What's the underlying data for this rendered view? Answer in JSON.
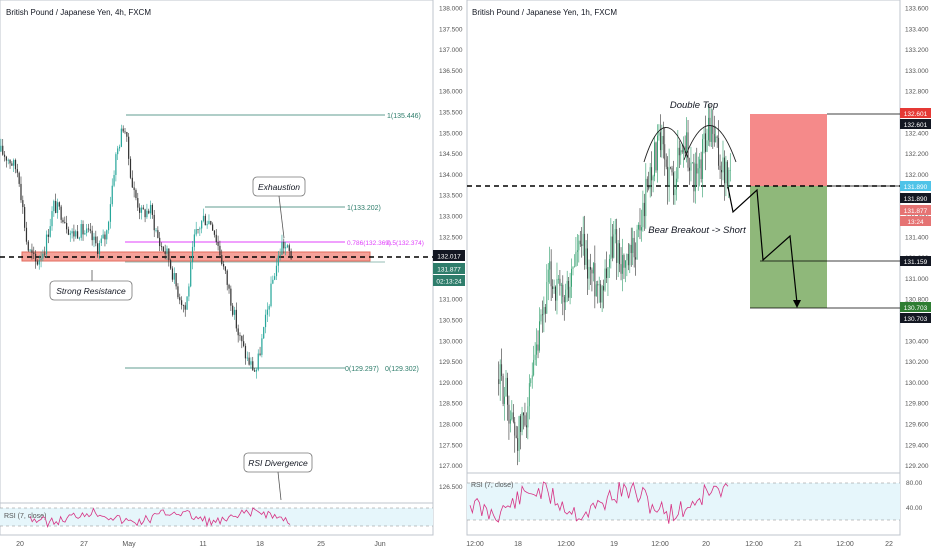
{
  "left_panel": {
    "title": "British Pound / Japanese Yen, 4h, FXCM",
    "price_ticks": [
      "138.000",
      "137.500",
      "137.000",
      "136.500",
      "136.000",
      "135.500",
      "135.000",
      "134.500",
      "134.000",
      "133.500",
      "133.000",
      "132.500",
      "132.000",
      "131.500",
      "131.000",
      "130.500",
      "130.000",
      "129.500",
      "129.000",
      "128.500",
      "128.000",
      "127.500",
      "127.000",
      "126.500"
    ],
    "date_ticks": [
      "20",
      "27",
      "May",
      "11",
      "18",
      "25",
      "Jun"
    ],
    "fib_labels": {
      "high": "1(135.446)",
      "swing": "1(133.202)",
      "level_786": "0.786(132.369)",
      "level_05": "0.5(132.374)",
      "zero_a": "0(129.297)",
      "zero_b": "0(129.302)"
    },
    "annotations": {
      "strong_resistance": "Strong Resistance",
      "exhaustion": "Exhaustion",
      "rsi_divergence": "RSI Divergence"
    },
    "price_badges": {
      "last": "132.017",
      "bid": "131.877",
      "countdown": "02:13:24"
    },
    "rsi_label": "RSI (7, close)",
    "colors": {
      "resistance_zone": "#f5a29a",
      "fib_line": "#2e7d6b",
      "fib_magenta": "#e040fb",
      "up": "#26a69a",
      "down": "#333333"
    }
  },
  "right_panel": {
    "title": "British Pound / Japanese Yen, 1h, FXCM",
    "price_ticks": [
      "133.600",
      "133.400",
      "133.200",
      "133.000",
      "132.800",
      "132.600",
      "132.400",
      "132.200",
      "132.000",
      "131.800",
      "131.600",
      "131.400",
      "131.200",
      "131.000",
      "130.800",
      "130.600",
      "130.400",
      "130.200",
      "130.000",
      "129.800",
      "129.600",
      "129.400",
      "129.200"
    ],
    "date_ticks": [
      "12:00",
      "18",
      "12:00",
      "19",
      "12:00",
      "20",
      "12:00",
      "21",
      "12:00",
      "22"
    ],
    "annotations": {
      "double_top": "Double Top",
      "bear_breakout": "Bear Breakout -> Short"
    },
    "price_badges": {
      "stop_a": "132.601",
      "stop_b": "132.601",
      "entry_a": "131.890",
      "entry_b": "131.890",
      "current": "131.877",
      "countdown": "13:24",
      "target_1": "131.159",
      "target_2_a": "130.703",
      "target_2_b": "130.703"
    },
    "rsi_label": "RSI (7, close)",
    "rsi_ticks": [
      "80.00",
      "40.00"
    ],
    "colors": {
      "stop_zone": "#f58a8a",
      "target_zone": "#8fb87a",
      "up": "#2e9d6b",
      "down": "#333333",
      "rsi_line": "#d63384"
    }
  },
  "chart_data": [
    {
      "type": "line",
      "title": "British Pound / Japanese Yen, 4h, FXCM",
      "x_ticks": [
        "20",
        "27",
        "May",
        "11",
        "18",
        "25",
        "Jun"
      ],
      "ylim": [
        126.3,
        138.2
      ],
      "series": [
        {
          "values": [
            134.6,
            134.4,
            134.1,
            132.3,
            131.9,
            132.3,
            133.3,
            133.1,
            132.6,
            132.7,
            132.6,
            132.3,
            132.6,
            134.4,
            135.3,
            133.7,
            133.1,
            133.2,
            132.4,
            132.1,
            131.3,
            130.8,
            132.5,
            133.0,
            132.9,
            132.1,
            131.2,
            130.2,
            129.6,
            129.3,
            130.4,
            131.6,
            132.4,
            132.1
          ]
        }
      ],
      "fib_levels": [
        135.446,
        133.202,
        132.369,
        132.374,
        129.297,
        129.302
      ],
      "resistance_zone": [
        132.0,
        132.17
      ],
      "last_price": 132.017
    },
    {
      "type": "line",
      "title": "British Pound / Japanese Yen, 1h, FXCM",
      "x_ticks": [
        "12:00",
        "18",
        "12:00",
        "19",
        "12:00",
        "20",
        "12:00",
        "21",
        "12:00",
        "22"
      ],
      "ylim": [
        129.15,
        133.7
      ],
      "series": [
        {
          "values": [
            130.05,
            129.95,
            129.65,
            129.5,
            129.7,
            129.9,
            130.3,
            130.7,
            131.05,
            130.9,
            130.8,
            130.95,
            131.25,
            131.3,
            131.1,
            131.0,
            130.95,
            131.2,
            131.4,
            131.2,
            131.1,
            131.3,
            131.5,
            131.9,
            132.15,
            132.3,
            132.1,
            131.95,
            132.2,
            132.35,
            132.05,
            131.95,
            132.35,
            132.45,
            132.2,
            132.05,
            131.9
          ]
        }
      ],
      "stop": 132.601,
      "entry": 131.89,
      "targets": [
        131.159,
        130.703
      ]
    }
  ]
}
